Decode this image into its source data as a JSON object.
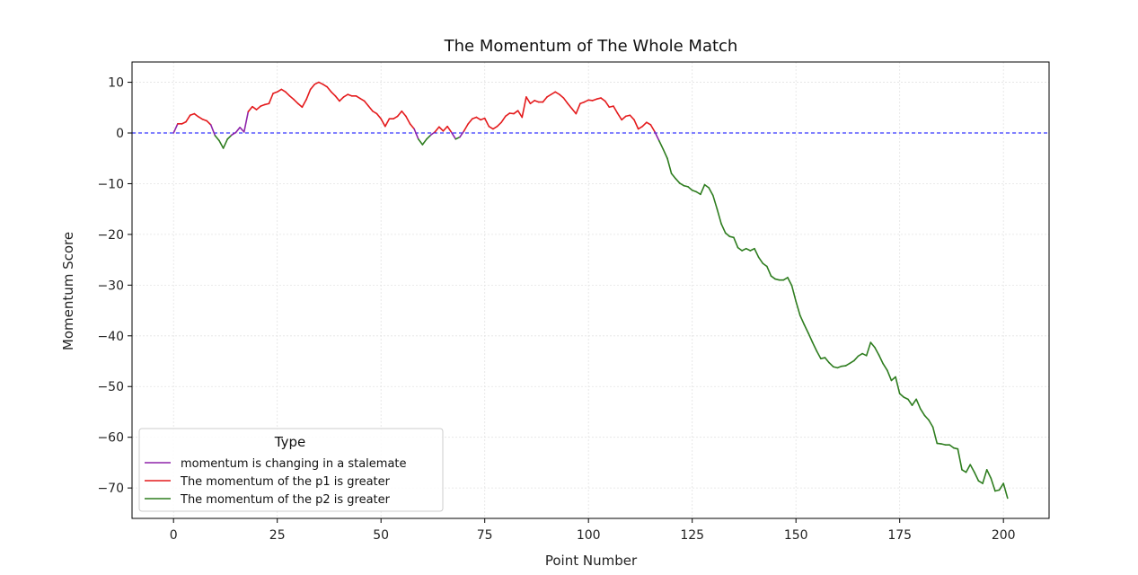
{
  "chart_data": {
    "type": "line",
    "title": "The Momentum of The Whole Match",
    "xlabel": "Point Number",
    "ylabel": "Momentum Score",
    "xlim": [
      -10,
      211
    ],
    "ylim": [
      -76,
      14
    ],
    "xticks": [
      0,
      25,
      50,
      75,
      100,
      125,
      150,
      175,
      200
    ],
    "yticks": [
      10,
      0,
      -10,
      -20,
      -30,
      -40,
      -50,
      -60,
      -70
    ],
    "xtick_labels": [
      "0",
      "25",
      "50",
      "75",
      "100",
      "125",
      "150",
      "175",
      "200"
    ],
    "ytick_labels": [
      "10",
      "0",
      "−10",
      "−20",
      "−30",
      "−40",
      "−50",
      "−60",
      "−70"
    ],
    "grid": true,
    "reference_line": {
      "y": 0,
      "color": "#0000ff",
      "style": "dashed"
    },
    "legend": {
      "title": "Type",
      "position": "lower-left",
      "entries": [
        {
          "label": "momentum is changing in a stalemate",
          "color": "#8e24aa"
        },
        {
          "label": "The momentum of the p1 is greater",
          "color": "#e41a1c"
        },
        {
          "label": "The momentum of the p2 is greater",
          "color": "#2e7d1f"
        }
      ]
    },
    "colors": {
      "stalemate": "#8e24aa",
      "p1": "#e41a1c",
      "p2": "#2e7d1f"
    },
    "x": [
      0,
      1,
      2,
      3,
      4,
      5,
      6,
      7,
      8,
      9,
      10,
      11,
      12,
      13,
      14,
      15,
      16,
      17,
      18,
      19,
      20,
      21,
      22,
      23,
      24,
      25,
      26,
      27,
      28,
      29,
      30,
      31,
      32,
      33,
      34,
      35,
      36,
      37,
      38,
      39,
      40,
      41,
      42,
      43,
      44,
      45,
      46,
      47,
      48,
      49,
      50,
      51,
      52,
      53,
      54,
      55,
      56,
      57,
      58,
      59,
      60,
      61,
      62,
      63,
      64,
      65,
      66,
      67,
      68,
      69,
      70,
      71,
      72,
      73,
      74,
      75,
      76,
      77,
      78,
      79,
      80,
      81,
      82,
      83,
      84,
      85,
      86,
      87,
      88,
      89,
      90,
      91,
      92,
      93,
      94,
      95,
      96,
      97,
      98,
      99,
      100,
      101,
      102,
      103,
      104,
      105,
      106,
      107,
      108,
      109,
      110,
      111,
      112,
      113,
      114,
      115,
      116,
      117,
      118,
      119,
      120,
      121,
      122,
      123,
      124,
      125,
      126,
      127,
      128,
      129,
      130,
      131,
      132,
      133,
      134,
      135,
      136,
      137,
      138,
      139,
      140,
      141,
      142,
      143,
      144,
      145,
      146,
      147,
      148,
      149,
      150,
      151,
      152,
      153,
      154,
      155,
      156,
      157,
      158,
      159,
      160,
      161,
      162,
      163,
      164,
      165,
      166,
      167,
      168,
      169,
      170,
      171,
      172,
      173,
      174,
      175,
      176,
      177,
      178,
      179,
      180,
      181,
      182,
      183,
      184,
      185,
      186,
      187,
      188,
      189,
      190,
      191,
      192,
      193,
      194,
      195,
      196,
      197,
      198,
      199,
      200,
      201
    ],
    "y": [
      0,
      1.8,
      1.8,
      2.2,
      3.5,
      3.8,
      3.2,
      2.7,
      2.4,
      1.6,
      -0.5,
      -1.5,
      -3,
      -1.2,
      -0.4,
      0.1,
      1.1,
      0.2,
      4.2,
      5.2,
      4.6,
      5.3,
      5.6,
      5.8,
      7.8,
      8.1,
      8.6,
      8.1,
      7.3,
      6.6,
      5.8,
      5.1,
      6.6,
      8.6,
      9.6,
      10,
      9.6,
      9.1,
      8.1,
      7.3,
      6.3,
      7.1,
      7.6,
      7.3,
      7.3,
      6.8,
      6.3,
      5.3,
      4.3,
      3.8,
      2.8,
      1.3,
      2.8,
      2.8,
      3.3,
      4.3,
      3.3,
      1.8,
      0.8,
      -1.2,
      -2.3,
      -1.2,
      -0.4,
      0.2,
      1.2,
      0.4,
      1.3,
      0.1,
      -1.2,
      -0.8,
      0.4,
      1.8,
      2.8,
      3.1,
      2.6,
      2.9,
      1.3,
      0.8,
      1.3,
      2.1,
      3.3,
      3.9,
      3.8,
      4.4,
      3.1,
      7.1,
      5.8,
      6.4,
      6.1,
      6.1,
      7.1,
      7.6,
      8.1,
      7.6,
      6.9,
      5.8,
      4.8,
      3.8,
      5.8,
      6.1,
      6.5,
      6.4,
      6.7,
      6.9,
      6.3,
      5.1,
      5.3,
      3.9,
      2.6,
      3.3,
      3.5,
      2.6,
      0.8,
      1.3,
      2.1,
      1.6,
      0.2,
      -1.5,
      -3.2,
      -5,
      -8,
      -9,
      -9.9,
      -10.4,
      -10.6,
      -11.3,
      -11.6,
      -12.1,
      -10.2,
      -10.8,
      -12.3,
      -15,
      -17.9,
      -19.7,
      -20.4,
      -20.6,
      -22.6,
      -23.2,
      -22.8,
      -23.2,
      -22.8,
      -24.5,
      -25.7,
      -26.3,
      -28.2,
      -28.8,
      -29,
      -29,
      -28.5,
      -30.1,
      -33.2,
      -36,
      -37.8,
      -39.5,
      -41.3,
      -43,
      -44.5,
      -44.3,
      -45.3,
      -46.1,
      -46.3,
      -46,
      -45.9,
      -45.4,
      -44.9,
      -44,
      -43.5,
      -43.9,
      -41.3,
      -42.3,
      -43.8,
      -45.5,
      -46.8,
      -48.8,
      -48.1,
      -51.4,
      -52.1,
      -52.5,
      -53.7,
      -52.5,
      -54.4,
      -55.7,
      -56.6,
      -58,
      -61.2,
      -61.3,
      -61.5,
      -61.5,
      -62.1,
      -62.3,
      -66.4,
      -66.9,
      -65.4,
      -66.9,
      -68.6,
      -69.1,
      -66.4,
      -68.1,
      -70.6,
      -70.4,
      -69.1,
      -72
    ]
  }
}
